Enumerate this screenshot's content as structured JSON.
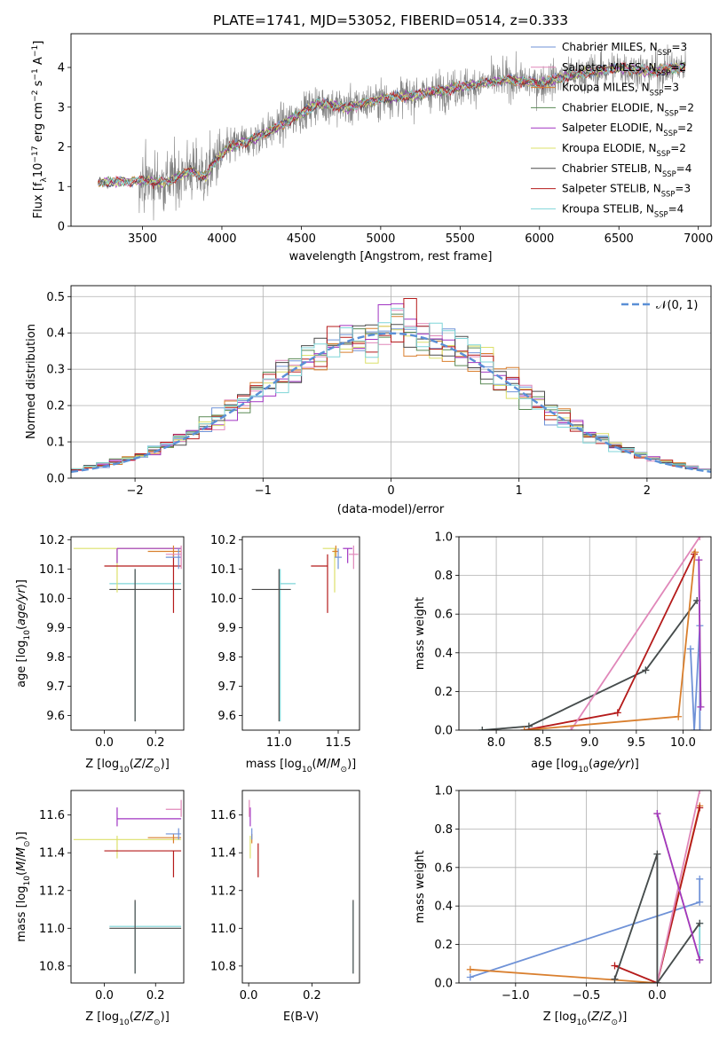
{
  "figure_title": "PLATE=1741, MJD=53052, FIBERID=0514, z=0.333",
  "colors": {
    "Chabrier MILES": "#6f92d7",
    "Salpeter MILES": "#e087b9",
    "Kroupa MILES": "#d97f2e",
    "Chabrier ELODIE": "#5a8a55",
    "Salpeter ELODIE": "#a135c2",
    "Kroupa ELODIE": "#dce06a",
    "Chabrier STELIB": "#4a4a4a",
    "Salpeter STELIB": "#b51b1b",
    "Kroupa STELIB": "#7fd6d8",
    "data": "#808080",
    "normal": "#5a8fd6",
    "grid": "#b0b0b0"
  },
  "chart_data": [
    {
      "id": "spectrum",
      "type": "line",
      "xlabel": "wavelength [Angstrom, rest frame]",
      "ylabel": "Flux [f_λ 10^-17 erg cm^-2 s^-1 A^-1]",
      "xlim": [
        3050,
        7080
      ],
      "ylim": [
        0,
        4.85
      ],
      "xticks": [
        3500,
        4000,
        4500,
        5000,
        5500,
        6000,
        6500,
        7000
      ],
      "yticks": [
        0,
        1,
        2,
        3,
        4
      ],
      "grid": false,
      "legend_position": "upper right",
      "legend": [
        {
          "base": "Chabrier MILES",
          "n": "3"
        },
        {
          "base": "Salpeter MILES",
          "n": "2"
        },
        {
          "base": "Kroupa MILES",
          "n": "3"
        },
        {
          "base": "Chabrier ELODIE",
          "n": "2"
        },
        {
          "base": "Salpeter ELODIE",
          "n": "2"
        },
        {
          "base": "Kroupa ELODIE",
          "n": "2"
        },
        {
          "base": "Chabrier STELIB",
          "n": "4"
        },
        {
          "base": "Salpeter STELIB",
          "n": "3"
        },
        {
          "base": "Kroupa STELIB",
          "n": "4"
        }
      ],
      "data_range": [
        3220,
        6920
      ],
      "model_anchors": [
        [
          3220,
          1.1
        ],
        [
          3500,
          1.15
        ],
        [
          3650,
          1.1
        ],
        [
          3800,
          1.4
        ],
        [
          3900,
          1.25
        ],
        [
          3950,
          1.6
        ],
        [
          4050,
          2.0
        ],
        [
          4200,
          2.2
        ],
        [
          4400,
          2.6
        ],
        [
          4600,
          3.1
        ],
        [
          4800,
          3.0
        ],
        [
          5000,
          3.2
        ],
        [
          5200,
          3.3
        ],
        [
          5500,
          3.5
        ],
        [
          5800,
          3.7
        ],
        [
          6000,
          3.6
        ],
        [
          6200,
          3.8
        ],
        [
          6500,
          4.0
        ],
        [
          6700,
          3.9
        ],
        [
          6900,
          4.0
        ]
      ]
    },
    {
      "id": "residuals",
      "type": "line",
      "xlabel": "(data-model)/error",
      "ylabel": "Normed distribution",
      "xlim": [
        -2.5,
        2.5
      ],
      "ylim": [
        0,
        0.53
      ],
      "xticks": [
        -2,
        -1,
        0,
        1,
        2
      ],
      "yticks": [
        0.0,
        0.1,
        0.2,
        0.3,
        0.4,
        0.5
      ],
      "grid": true,
      "legend_position": "upper right",
      "legend_label": "𝒩(0, 1)",
      "bin_width": 0.1
    },
    {
      "id": "age-Z",
      "type": "scatter",
      "xlabel": "Z [log10(Z/Z⊙)]",
      "ylabel": "age  [log10(age/yr)]",
      "xlim": [
        -0.13,
        0.31
      ],
      "ylim": [
        9.55,
        10.21
      ],
      "xticks": [
        0.0,
        0.2
      ],
      "yticks": [
        9.6,
        9.7,
        9.8,
        9.9,
        10.0,
        10.1,
        10.2
      ],
      "grid": false,
      "points": [
        {
          "model": "Kroupa STELIB",
          "x": 0.12,
          "y": 10.05,
          "xerr": [
            0.1,
            0.18
          ],
          "yerr": [
            0.47,
            0.05
          ]
        },
        {
          "model": "Chabrier STELIB",
          "x": 0.12,
          "y": 10.03,
          "xerr": [
            0.1,
            0.18
          ],
          "yerr": [
            0.45,
            0.07
          ]
        },
        {
          "model": "Kroupa ELODIE",
          "x": 0.05,
          "y": 10.17,
          "xerr": [
            0.17,
            0.25
          ],
          "yerr": [
            0.15,
            0.0
          ]
        },
        {
          "model": "Salpeter ELODIE",
          "x": 0.05,
          "y": 10.17,
          "xerr": [
            0.0,
            0.25
          ],
          "yerr": [
            0.05,
            0.0
          ]
        },
        {
          "model": "Salpeter STELIB",
          "x": 0.27,
          "y": 10.11,
          "xerr": [
            0.27,
            0.03
          ],
          "yerr": [
            0.16,
            0.04
          ]
        },
        {
          "model": "Kroupa MILES",
          "x": 0.27,
          "y": 10.16,
          "xerr": [
            0.1,
            0.03
          ],
          "yerr": [
            0.02,
            0.02
          ]
        },
        {
          "model": "Chabrier MILES",
          "x": 0.29,
          "y": 10.14,
          "xerr": [
            0.05,
            0.01
          ],
          "yerr": [
            0.04,
            0.03
          ]
        },
        {
          "model": "Salpeter MILES",
          "x": 0.3,
          "y": 10.15,
          "xerr": [
            0.06,
            0.0
          ],
          "yerr": [
            0.05,
            0.03
          ]
        }
      ]
    },
    {
      "id": "age-mass",
      "type": "scatter",
      "xlabel": "mass [log10(M/M⊙)]",
      "ylabel": "",
      "xlim": [
        10.69,
        11.68
      ],
      "ylim": [
        9.55,
        10.21
      ],
      "xticks": [
        11.0,
        11.5
      ],
      "yticks": [
        9.6,
        9.7,
        9.8,
        9.9,
        10.0,
        10.1,
        10.2
      ],
      "grid": false,
      "points": [
        {
          "model": "Kroupa STELIB",
          "x": 11.01,
          "y": 10.05,
          "xerr": [
            0.0,
            0.13
          ],
          "yerr": [
            0.47,
            0.05
          ]
        },
        {
          "model": "Chabrier STELIB",
          "x": 11.0,
          "y": 10.03,
          "xerr": [
            0.23,
            0.1
          ],
          "yerr": [
            0.45,
            0.07
          ]
        },
        {
          "model": "Kroupa ELODIE",
          "x": 11.47,
          "y": 10.17,
          "xerr": [
            0.1,
            0.02
          ],
          "yerr": [
            0.15,
            0.0
          ]
        },
        {
          "model": "Salpeter ELODIE",
          "x": 11.58,
          "y": 10.17,
          "xerr": [
            0.04,
            0.04
          ],
          "yerr": [
            0.05,
            0.0
          ]
        },
        {
          "model": "Salpeter STELIB",
          "x": 11.41,
          "y": 10.11,
          "xerr": [
            0.14,
            0.0
          ],
          "yerr": [
            0.16,
            0.04
          ]
        },
        {
          "model": "Kroupa MILES",
          "x": 11.48,
          "y": 10.16,
          "xerr": [
            0.03,
            0.02
          ],
          "yerr": [
            0.02,
            0.02
          ]
        },
        {
          "model": "Chabrier MILES",
          "x": 11.5,
          "y": 10.14,
          "xerr": [
            0.03,
            0.03
          ],
          "yerr": [
            0.04,
            0.03
          ]
        },
        {
          "model": "Salpeter MILES",
          "x": 11.63,
          "y": 10.15,
          "xerr": [
            0.04,
            0.04
          ],
          "yerr": [
            0.05,
            0.03
          ]
        }
      ]
    },
    {
      "id": "weight-age",
      "type": "line",
      "xlabel": "age  [log10(age/yr)]",
      "ylabel": "mass weight",
      "xlim": [
        7.6,
        10.3
      ],
      "ylim": [
        0,
        1
      ],
      "xticks": [
        8.0,
        8.5,
        9.0,
        9.5,
        10.0
      ],
      "yticks": [
        0.0,
        0.2,
        0.4,
        0.6,
        0.8,
        1.0
      ],
      "grid": true,
      "series": [
        {
          "model": "Kroupa STELIB",
          "x": [
            7.85,
            8.35,
            9.6,
            10.15
          ],
          "y": [
            0.0,
            0.02,
            0.31,
            0.67
          ]
        },
        {
          "model": "Chabrier STELIB",
          "x": [
            7.85,
            8.35,
            9.6,
            10.15
          ],
          "y": [
            0.0,
            0.02,
            0.31,
            0.67
          ]
        },
        {
          "model": "Salpeter STELIB",
          "x": [
            8.3,
            9.3,
            10.12
          ],
          "y": [
            0.0,
            0.09,
            0.91
          ]
        },
        {
          "model": "Salpeter MILES",
          "x": [
            8.8,
            10.18
          ],
          "y": [
            0.0,
            1.0
          ]
        },
        {
          "model": "Kroupa MILES",
          "x": [
            8.3,
            9.95,
            10.13
          ],
          "y": [
            0.0,
            0.07,
            0.92
          ]
        },
        {
          "model": "Chabrier MILES",
          "x": [
            10.08,
            10.12,
            10.18,
            10.18
          ],
          "y": [
            0.42,
            0.0,
            0.54,
            0.0
          ]
        },
        {
          "model": "Kroupa ELODIE",
          "x": [
            10.17,
            10.19
          ],
          "y": [
            0.88,
            0.12
          ]
        },
        {
          "model": "Salpeter ELODIE",
          "x": [
            10.17,
            10.19
          ],
          "y": [
            0.88,
            0.12
          ]
        }
      ]
    },
    {
      "id": "mass-Z",
      "type": "scatter",
      "xlabel": "Z [log10(Z/Z⊙)]",
      "ylabel": "mass [log10(M/M⊙)]",
      "xlim": [
        -0.13,
        0.31
      ],
      "ylim": [
        10.71,
        11.73
      ],
      "xticks": [
        0.0,
        0.2
      ],
      "yticks": [
        10.8,
        11.0,
        11.2,
        11.4,
        11.6
      ],
      "grid": false,
      "points": [
        {
          "model": "Kroupa STELIB",
          "x": 0.12,
          "y": 11.01,
          "xerr": [
            0.1,
            0.18
          ],
          "yerr": [
            0.25,
            0.13
          ]
        },
        {
          "model": "Chabrier STELIB",
          "x": 0.12,
          "y": 11.0,
          "xerr": [
            0.1,
            0.18
          ],
          "yerr": [
            0.24,
            0.15
          ]
        },
        {
          "model": "Kroupa ELODIE",
          "x": 0.05,
          "y": 11.47,
          "xerr": [
            0.17,
            0.25
          ],
          "yerr": [
            0.1,
            0.02
          ]
        },
        {
          "model": "Salpeter ELODIE",
          "x": 0.05,
          "y": 11.58,
          "xerr": [
            0.0,
            0.25
          ],
          "yerr": [
            0.04,
            0.06
          ]
        },
        {
          "model": "Salpeter STELIB",
          "x": 0.27,
          "y": 11.41,
          "xerr": [
            0.27,
            0.03
          ],
          "yerr": [
            0.14,
            0.0
          ]
        },
        {
          "model": "Kroupa MILES",
          "x": 0.27,
          "y": 11.48,
          "xerr": [
            0.1,
            0.03
          ],
          "yerr": [
            0.03,
            0.02
          ]
        },
        {
          "model": "Chabrier MILES",
          "x": 0.29,
          "y": 11.5,
          "xerr": [
            0.05,
            0.01
          ],
          "yerr": [
            0.03,
            0.03
          ]
        },
        {
          "model": "Salpeter MILES",
          "x": 0.3,
          "y": 11.63,
          "xerr": [
            0.06,
            0.0
          ],
          "yerr": [
            0.04,
            0.05
          ]
        }
      ]
    },
    {
      "id": "mass-ebv",
      "type": "scatter",
      "xlabel": "E(B-V)",
      "ylabel": "",
      "xlim": [
        -0.02,
        0.35
      ],
      "ylim": [
        10.71,
        11.73
      ],
      "xticks": [
        0.0,
        0.2
      ],
      "yticks": [
        10.8,
        11.0,
        11.2,
        11.4,
        11.6
      ],
      "grid": false,
      "points": [
        {
          "model": "Kroupa STELIB",
          "x": 0.33,
          "y": 11.01,
          "xerr": [
            0,
            0
          ],
          "yerr": [
            0.25,
            0.13
          ]
        },
        {
          "model": "Chabrier STELIB",
          "x": 0.33,
          "y": 11.0,
          "xerr": [
            0,
            0
          ],
          "yerr": [
            0.24,
            0.15
          ]
        },
        {
          "model": "Salpeter STELIB",
          "x": 0.03,
          "y": 11.41,
          "xerr": [
            0,
            0
          ],
          "yerr": [
            0.14,
            0.04
          ]
        },
        {
          "model": "Kroupa ELODIE",
          "x": 0.005,
          "y": 11.47,
          "xerr": [
            0,
            0
          ],
          "yerr": [
            0.1,
            0.02
          ]
        },
        {
          "model": "Salpeter ELODIE",
          "x": 0.005,
          "y": 11.58,
          "xerr": [
            0,
            0
          ],
          "yerr": [
            0.04,
            0.06
          ]
        },
        {
          "model": "Kroupa MILES",
          "x": 0.01,
          "y": 11.48,
          "xerr": [
            0,
            0
          ],
          "yerr": [
            0.03,
            0.02
          ]
        },
        {
          "model": "Chabrier MILES",
          "x": 0.01,
          "y": 11.5,
          "xerr": [
            0,
            0
          ],
          "yerr": [
            0.03,
            0.03
          ]
        },
        {
          "model": "Salpeter MILES",
          "x": 0.002,
          "y": 11.63,
          "xerr": [
            0,
            0
          ],
          "yerr": [
            0.04,
            0.05
          ]
        }
      ]
    },
    {
      "id": "weight-Z",
      "type": "line",
      "xlabel": "Z [log10(Z/Z⊙)]",
      "ylabel": "mass weight",
      "xlim": [
        -1.4,
        0.38
      ],
      "ylim": [
        0,
        1
      ],
      "xticks": [
        -1.0,
        -0.5,
        0.0
      ],
      "yticks": [
        0.0,
        0.2,
        0.4,
        0.6,
        0.8,
        1.0
      ],
      "grid": true,
      "series": [
        {
          "model": "Chabrier MILES",
          "x": [
            -1.32,
            0.3,
            0.3
          ],
          "y": [
            0.03,
            0.42,
            0.54
          ]
        },
        {
          "model": "Kroupa MILES",
          "x": [
            -1.32,
            0.0,
            0.3
          ],
          "y": [
            0.07,
            0.0,
            0.92
          ]
        },
        {
          "model": "Salpeter STELIB",
          "x": [
            -0.3,
            0.0,
            0.3
          ],
          "y": [
            0.09,
            0.0,
            0.91
          ]
        },
        {
          "model": "Salpeter MILES",
          "x": [
            0.0,
            0.3
          ],
          "y": [
            0.0,
            1.0
          ]
        },
        {
          "model": "Kroupa STELIB",
          "x": [
            -0.3,
            0.0,
            0.0,
            0.3,
            0.3
          ],
          "y": [
            0.02,
            0.67,
            0.0,
            0.31,
            0.12
          ]
        },
        {
          "model": "Chabrier STELIB",
          "x": [
            -0.3,
            0.0,
            0.0,
            0.3
          ],
          "y": [
            0.02,
            0.67,
            0.0,
            0.31
          ]
        },
        {
          "model": "Kroupa ELODIE",
          "x": [
            0.0,
            0.3
          ],
          "y": [
            0.88,
            0.12
          ]
        },
        {
          "model": "Salpeter ELODIE",
          "x": [
            0.0,
            0.3
          ],
          "y": [
            0.88,
            0.12
          ]
        }
      ]
    }
  ]
}
